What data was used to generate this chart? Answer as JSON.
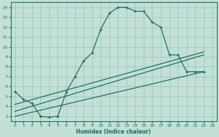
{
  "xlabel": "Humidex (Indice chaleur)",
  "xlim": [
    -0.5,
    23.5
  ],
  "ylim": [
    2.5,
    14.5
  ],
  "xticks": [
    0,
    1,
    2,
    3,
    4,
    5,
    6,
    7,
    8,
    9,
    10,
    11,
    12,
    13,
    14,
    15,
    16,
    17,
    18,
    19,
    20,
    21,
    22,
    23
  ],
  "yticks": [
    3,
    4,
    5,
    6,
    7,
    8,
    9,
    10,
    11,
    12,
    13,
    14
  ],
  "bg_color": "#c2e0d8",
  "grid_color": "#9cc4bc",
  "line_color": "#1a6b58",
  "main_x": [
    0,
    1,
    2,
    3,
    4,
    5,
    6,
    7,
    8,
    9,
    10,
    11,
    12,
    13,
    14,
    15,
    16,
    17,
    18,
    19,
    20,
    21,
    22
  ],
  "main_y": [
    5.5,
    4.7,
    4.3,
    3.0,
    2.9,
    3.0,
    5.5,
    7.0,
    8.6,
    9.4,
    11.8,
    13.4,
    14.0,
    14.0,
    13.6,
    13.6,
    12.5,
    12.0,
    9.2,
    9.2,
    7.5,
    7.5,
    7.5
  ],
  "line1_x": [
    0,
    22
  ],
  "line1_y": [
    3.5,
    9.2
  ],
  "line2_x": [
    0,
    22
  ],
  "line2_y": [
    4.2,
    9.5
  ],
  "line3_x": [
    0,
    22
  ],
  "line3_y": [
    3.0,
    7.5
  ]
}
